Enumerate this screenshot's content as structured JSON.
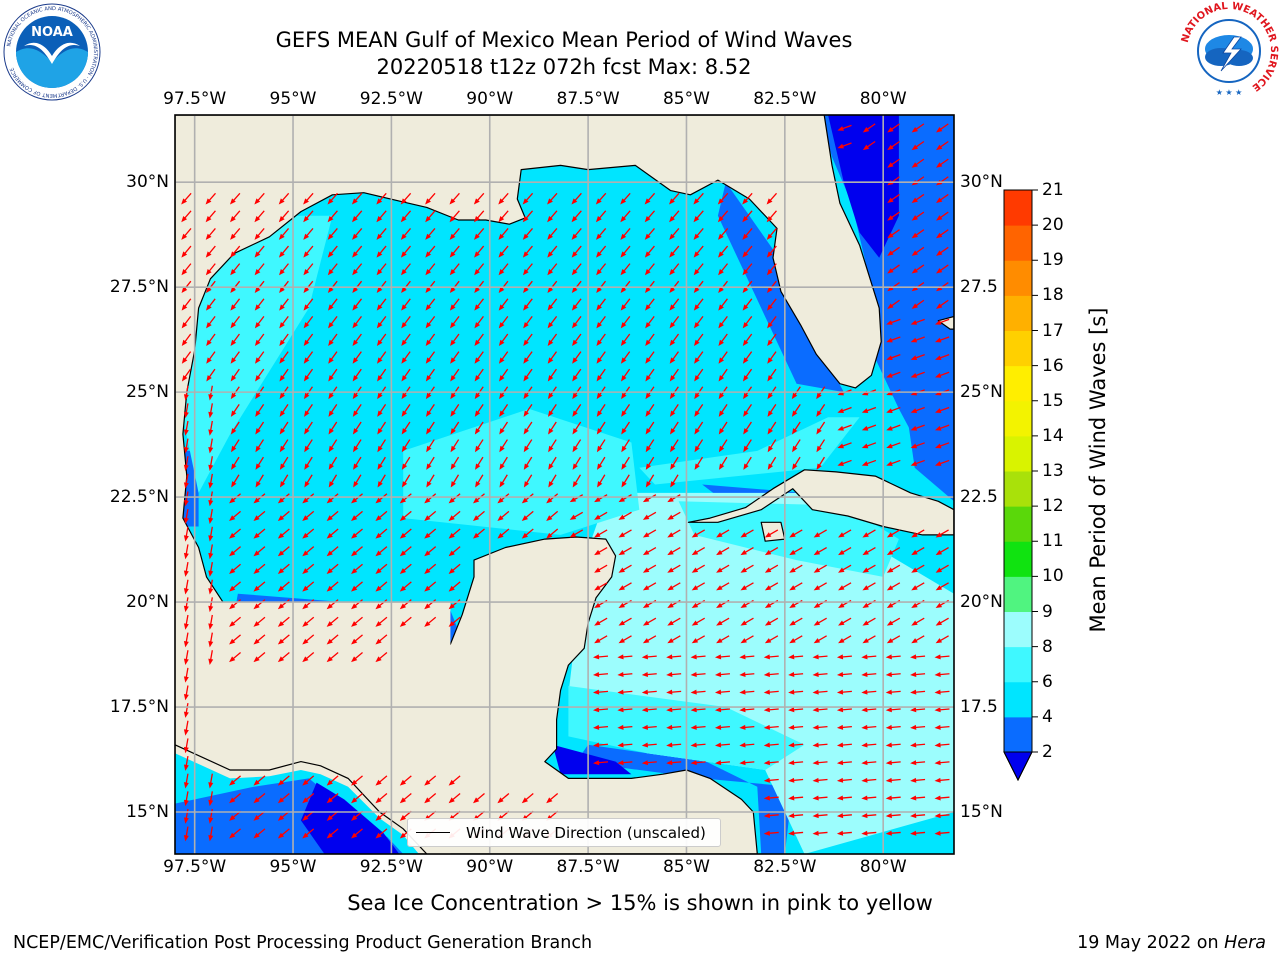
{
  "title": {
    "line1": "GEFS MEAN Gulf of Mexico Mean Period of Wind Waves",
    "line2": "20220518 t12z 072h fcst   Max: 8.52"
  },
  "map": {
    "lon_labels": [
      "97.5°W",
      "95°W",
      "92.5°W",
      "90°W",
      "87.5°W",
      "85°W",
      "82.5°W",
      "80°W"
    ],
    "lat_labels_left": [
      "30°N",
      "27.5°N",
      "25°N",
      "22.5°N",
      "20°N",
      "17.5°N",
      "15°N"
    ],
    "lat_labels_right": [
      "30°N",
      "27.5",
      "25°N",
      "22.5",
      "20°N",
      "17.5",
      "15°N"
    ],
    "lon_range": [
      -98.0,
      -78.2
    ],
    "lat_range": [
      14.0,
      31.6
    ],
    "grid": true,
    "land_color": "#efecdc",
    "arrow_color": "#ff0000",
    "legend_label": "Wind Wave Direction (unscaled)"
  },
  "colorbar": {
    "label": "Mean Period of Wind Waves [s]",
    "ticks": [
      "21",
      "20",
      "19",
      "18",
      "17",
      "16",
      "15",
      "14",
      "13",
      "12",
      "11",
      "10",
      "9",
      "8",
      "6",
      "4",
      "2"
    ],
    "levels": [
      2,
      4,
      6,
      8,
      9,
      10,
      11,
      12,
      13,
      14,
      15,
      16,
      17,
      18,
      19,
      20,
      21
    ],
    "colors": [
      "#0a6cff",
      "#00e5ff",
      "#3ff8ff",
      "#9cfdfd",
      "#50f480",
      "#10e310",
      "#5ad80a",
      "#a9e10a",
      "#d9f300",
      "#f3f300",
      "#ffee00",
      "#ffd000",
      "#ffb000",
      "#ff8c00",
      "#ff6400",
      "#ff3a00"
    ],
    "extend_color": "#0000ee"
  },
  "ice_note": "Sea Ice Concentration > 15% is shown in pink to yellow",
  "footer": {
    "left": "NCEP/EMC/Verification Post Processing Product Generation Branch",
    "right_date": "19 May 2022 on ",
    "right_host": "Hera"
  },
  "logos": {
    "noaa_text": "NOAA",
    "noaa_ring": "NATIONAL OCEANIC AND ATMOSPHERIC ADMINISTRATION · U.S. DEPARTMENT OF COMMERCE",
    "nws_ring": "NATIONAL WEATHER SERVICE"
  }
}
